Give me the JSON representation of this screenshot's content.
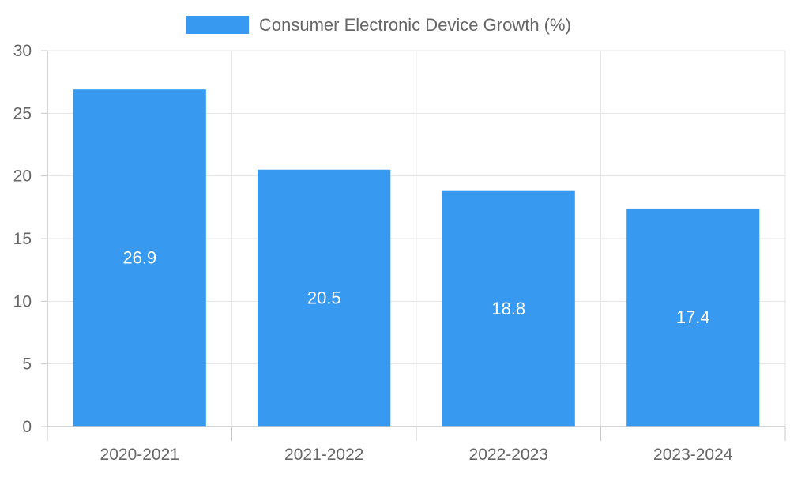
{
  "chart_data": {
    "type": "bar",
    "categories": [
      "2020-2021",
      "2021-2022",
      "2022-2023",
      "2023-2024"
    ],
    "series": [
      {
        "name": "Consumer Electronic Device Growth (%)",
        "values": [
          26.9,
          20.5,
          18.8,
          17.4
        ]
      }
    ],
    "ylim": [
      0,
      30
    ],
    "yticks": [
      0,
      5,
      10,
      15,
      20,
      25,
      30
    ],
    "grid": true,
    "legend": "top-center",
    "data_labels": [
      "26.9",
      "20.5",
      "18.8",
      "17.4"
    ],
    "title": "",
    "xlabel": "",
    "ylabel": ""
  },
  "colors": {
    "bar": "#3799f0",
    "grid": "#e5e5e5",
    "axis": "#c7c7c7",
    "tick_text": "#666666",
    "label_text": "#ffffff"
  }
}
